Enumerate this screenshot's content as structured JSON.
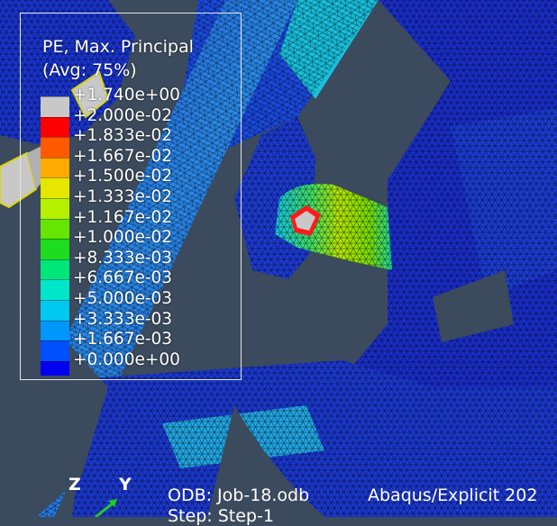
{
  "legend": {
    "title_line1": "PE, Max. Principal",
    "title_line2": "(Avg: 75%)",
    "entries": [
      {
        "value": "+1.740e+00",
        "color": "#c8c8c8"
      },
      {
        "value": "+2.000e-02",
        "color": "#ff0000"
      },
      {
        "value": "+1.833e-02",
        "color": "#ff5a00"
      },
      {
        "value": "+1.667e-02",
        "color": "#ffaa00"
      },
      {
        "value": "+1.500e-02",
        "color": "#e6e600"
      },
      {
        "value": "+1.333e-02",
        "color": "#b4f000"
      },
      {
        "value": "+1.167e-02",
        "color": "#64e600"
      },
      {
        "value": "+1.000e-02",
        "color": "#1edc1e"
      },
      {
        "value": "+8.333e-03",
        "color": "#00e678"
      },
      {
        "value": "+6.667e-03",
        "color": "#00e6c8"
      },
      {
        "value": "+5.000e-03",
        "color": "#00c8f0"
      },
      {
        "value": "+3.333e-03",
        "color": "#0096ff"
      },
      {
        "value": "+1.667e-03",
        "color": "#0050ff"
      },
      {
        "value": "+0.000e+00",
        "color": "#0000f0"
      }
    ]
  },
  "triad": {
    "z_label": "Z",
    "y_label": "Y"
  },
  "footer": {
    "odb": "ODB: Job-18.odb",
    "solver": "Abaqus/Explicit 202",
    "step": "Step: Step-1"
  },
  "colors": {
    "background": "#3b4a5c",
    "mesh_blue": "#1a2fd0",
    "mesh_light_blue": "#2a7be6",
    "mesh_cyan": "#12c6e6",
    "hotspot_green": "#7ee000",
    "hotspot_red": "#ff1a1a",
    "failed_grey": "#c8c8c8"
  }
}
